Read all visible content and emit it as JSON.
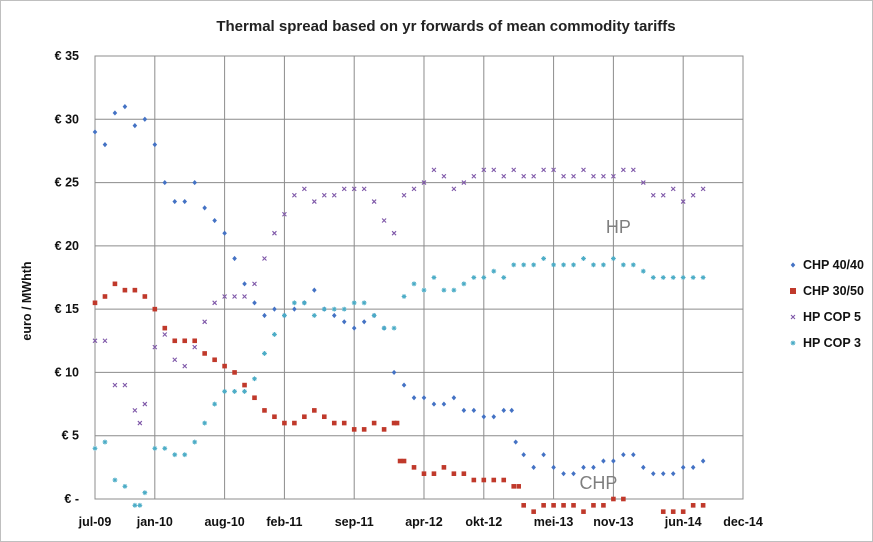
{
  "chart_data": {
    "type": "scatter",
    "title": "Thermal spread based on yr forwards of mean commodity tariffs",
    "ylabel": "euro / MWhth",
    "xlabel": "",
    "ylim": [
      0,
      35
    ],
    "xlim": [
      0,
      65
    ],
    "y_ticks": [
      {
        "value": 0,
        "label": "€ -"
      },
      {
        "value": 5,
        "label": "€ 5"
      },
      {
        "value": 10,
        "label": "€ 10"
      },
      {
        "value": 15,
        "label": "€ 15"
      },
      {
        "value": 20,
        "label": "€ 20"
      },
      {
        "value": 25,
        "label": "€ 25"
      },
      {
        "value": 30,
        "label": "€ 30"
      },
      {
        "value": 35,
        "label": "€ 35"
      }
    ],
    "x_ticks": [
      {
        "value": 0,
        "label": "jul-09"
      },
      {
        "value": 6,
        "label": "jan-10"
      },
      {
        "value": 13,
        "label": "aug-10"
      },
      {
        "value": 19,
        "label": "feb-11"
      },
      {
        "value": 26,
        "label": "sep-11"
      },
      {
        "value": 33,
        "label": "apr-12"
      },
      {
        "value": 39,
        "label": "okt-12"
      },
      {
        "value": 46,
        "label": "mei-13"
      },
      {
        "value": 52,
        "label": "nov-13"
      },
      {
        "value": 59,
        "label": "jun-14"
      },
      {
        "value": 65,
        "label": "dec-14"
      }
    ],
    "grid": true,
    "legend_position": "right",
    "annotations": [
      {
        "text": "HP",
        "x": 52.5,
        "y": 21
      },
      {
        "text": "CHP",
        "x": 50.5,
        "y": 0.8
      }
    ],
    "series": [
      {
        "name": "CHP 40/40",
        "color": "#4472c4",
        "marker": "diamond",
        "points": [
          [
            0,
            29
          ],
          [
            1,
            28
          ],
          [
            2,
            30.5
          ],
          [
            3,
            31
          ],
          [
            4,
            29.5
          ],
          [
            5,
            30
          ],
          [
            6,
            28
          ],
          [
            7,
            25
          ],
          [
            8,
            23.5
          ],
          [
            9,
            23.5
          ],
          [
            10,
            25
          ],
          [
            11,
            23
          ],
          [
            12,
            22
          ],
          [
            13,
            21
          ],
          [
            14,
            19
          ],
          [
            15,
            17
          ],
          [
            16,
            15.5
          ],
          [
            17,
            14.5
          ],
          [
            18,
            15
          ],
          [
            19,
            14.5
          ],
          [
            20,
            15
          ],
          [
            21,
            15.5
          ],
          [
            22,
            16.5
          ],
          [
            23,
            15
          ],
          [
            24,
            14.5
          ],
          [
            25,
            14
          ],
          [
            26,
            13.5
          ],
          [
            27,
            14
          ],
          [
            28,
            14.5
          ],
          [
            29,
            13.5
          ],
          [
            30,
            10
          ],
          [
            31,
            9
          ],
          [
            32,
            8
          ],
          [
            33,
            8
          ],
          [
            34,
            7.5
          ],
          [
            35,
            7.5
          ],
          [
            36,
            8
          ],
          [
            37,
            7
          ],
          [
            38,
            7
          ],
          [
            39,
            6.5
          ],
          [
            40,
            6.5
          ],
          [
            41,
            7
          ],
          [
            41.8,
            7
          ],
          [
            42.2,
            4.5
          ],
          [
            43,
            3.5
          ],
          [
            44,
            2.5
          ],
          [
            45,
            3.5
          ],
          [
            46,
            2.5
          ],
          [
            47,
            2
          ],
          [
            48,
            2
          ],
          [
            49,
            2.5
          ],
          [
            50,
            2.5
          ],
          [
            51,
            3
          ],
          [
            52,
            3
          ],
          [
            53,
            3.5
          ],
          [
            54,
            3.5
          ],
          [
            55,
            2.5
          ],
          [
            56,
            2
          ],
          [
            57,
            2
          ],
          [
            58,
            2
          ],
          [
            59,
            2.5
          ],
          [
            60,
            2.5
          ],
          [
            61,
            3
          ]
        ]
      },
      {
        "name": "CHP 30/50",
        "color": "#c0392b",
        "marker": "square",
        "points": [
          [
            0,
            15.5
          ],
          [
            1,
            16
          ],
          [
            2,
            17
          ],
          [
            3,
            16.5
          ],
          [
            4,
            16.5
          ],
          [
            5,
            16
          ],
          [
            6,
            15
          ],
          [
            7,
            13.5
          ],
          [
            8,
            12.5
          ],
          [
            9,
            12.5
          ],
          [
            10,
            12.5
          ],
          [
            11,
            11.5
          ],
          [
            12,
            11
          ],
          [
            13,
            10.5
          ],
          [
            14,
            10
          ],
          [
            15,
            9
          ],
          [
            16,
            8
          ],
          [
            17,
            7
          ],
          [
            18,
            6.5
          ],
          [
            19,
            6
          ],
          [
            20,
            6
          ],
          [
            21,
            6.5
          ],
          [
            22,
            7
          ],
          [
            23,
            6.5
          ],
          [
            24,
            6
          ],
          [
            25,
            6
          ],
          [
            26,
            5.5
          ],
          [
            27,
            5.5
          ],
          [
            28,
            6
          ],
          [
            29,
            5.5
          ],
          [
            30,
            6
          ],
          [
            30.3,
            6
          ],
          [
            30.6,
            3
          ],
          [
            31,
            3
          ],
          [
            32,
            2.5
          ],
          [
            33,
            2
          ],
          [
            34,
            2
          ],
          [
            35,
            2.5
          ],
          [
            36,
            2
          ],
          [
            37,
            2
          ],
          [
            38,
            1.5
          ],
          [
            39,
            1.5
          ],
          [
            40,
            1.5
          ],
          [
            41,
            1.5
          ],
          [
            42,
            1
          ],
          [
            42.5,
            1
          ],
          [
            43,
            -0.5
          ],
          [
            44,
            -1
          ],
          [
            45,
            -0.5
          ],
          [
            46,
            -0.5
          ],
          [
            47,
            -0.5
          ],
          [
            48,
            -0.5
          ],
          [
            49,
            -1
          ],
          [
            50,
            -0.5
          ],
          [
            51,
            -0.5
          ],
          [
            52,
            0
          ],
          [
            53,
            0
          ],
          [
            54,
            -1.5
          ],
          [
            55,
            -1.5
          ],
          [
            56,
            -1.5
          ],
          [
            57,
            -1
          ],
          [
            58,
            -1
          ],
          [
            59,
            -1
          ],
          [
            60,
            -0.5
          ],
          [
            61,
            -0.5
          ]
        ]
      },
      {
        "name": "HP COP 5",
        "color": "#7e57a8",
        "marker": "x",
        "points": [
          [
            0,
            12.5
          ],
          [
            1,
            12.5
          ],
          [
            2,
            9
          ],
          [
            3,
            9
          ],
          [
            4,
            7
          ],
          [
            4.5,
            6
          ],
          [
            5,
            7.5
          ],
          [
            6,
            12
          ],
          [
            7,
            13
          ],
          [
            8,
            11
          ],
          [
            9,
            10.5
          ],
          [
            10,
            12
          ],
          [
            11,
            14
          ],
          [
            12,
            15.5
          ],
          [
            13,
            16
          ],
          [
            14,
            16
          ],
          [
            15,
            16
          ],
          [
            16,
            17
          ],
          [
            17,
            19
          ],
          [
            18,
            21
          ],
          [
            19,
            22.5
          ],
          [
            20,
            24
          ],
          [
            21,
            24.5
          ],
          [
            22,
            23.5
          ],
          [
            23,
            24
          ],
          [
            24,
            24
          ],
          [
            25,
            24.5
          ],
          [
            26,
            24.5
          ],
          [
            27,
            24.5
          ],
          [
            28,
            23.5
          ],
          [
            29,
            22
          ],
          [
            30,
            21
          ],
          [
            31,
            24
          ],
          [
            32,
            24.5
          ],
          [
            33,
            25
          ],
          [
            34,
            26
          ],
          [
            35,
            25.5
          ],
          [
            36,
            24.5
          ],
          [
            37,
            25
          ],
          [
            38,
            25.5
          ],
          [
            39,
            26
          ],
          [
            40,
            26
          ],
          [
            41,
            25.5
          ],
          [
            42,
            26
          ],
          [
            43,
            25.5
          ],
          [
            44,
            25.5
          ],
          [
            45,
            26
          ],
          [
            46,
            26
          ],
          [
            47,
            25.5
          ],
          [
            48,
            25.5
          ],
          [
            49,
            26
          ],
          [
            50,
            25.5
          ],
          [
            51,
            25.5
          ],
          [
            52,
            25.5
          ],
          [
            53,
            26
          ],
          [
            54,
            26
          ],
          [
            55,
            25
          ],
          [
            56,
            24
          ],
          [
            57,
            24
          ],
          [
            58,
            24.5
          ],
          [
            59,
            23.5
          ],
          [
            60,
            24
          ],
          [
            61,
            24.5
          ]
        ]
      },
      {
        "name": "HP COP 3",
        "color": "#4bacc6",
        "marker": "star",
        "points": [
          [
            0,
            4
          ],
          [
            1,
            4.5
          ],
          [
            2,
            1.5
          ],
          [
            3,
            1
          ],
          [
            4,
            -0.5
          ],
          [
            4.5,
            -0.5
          ],
          [
            5,
            0.5
          ],
          [
            6,
            4
          ],
          [
            7,
            4
          ],
          [
            8,
            3.5
          ],
          [
            9,
            3.5
          ],
          [
            10,
            4.5
          ],
          [
            11,
            6
          ],
          [
            12,
            7.5
          ],
          [
            13,
            8.5
          ],
          [
            14,
            8.5
          ],
          [
            15,
            8.5
          ],
          [
            16,
            9.5
          ],
          [
            17,
            11.5
          ],
          [
            18,
            13
          ],
          [
            19,
            14.5
          ],
          [
            20,
            15.5
          ],
          [
            21,
            15.5
          ],
          [
            22,
            14.5
          ],
          [
            23,
            15
          ],
          [
            24,
            15
          ],
          [
            25,
            15
          ],
          [
            26,
            15.5
          ],
          [
            27,
            15.5
          ],
          [
            28,
            14.5
          ],
          [
            29,
            13.5
          ],
          [
            30,
            13.5
          ],
          [
            31,
            16
          ],
          [
            32,
            17
          ],
          [
            33,
            16.5
          ],
          [
            34,
            17.5
          ],
          [
            35,
            16.5
          ],
          [
            36,
            16.5
          ],
          [
            37,
            17
          ],
          [
            38,
            17.5
          ],
          [
            39,
            17.5
          ],
          [
            40,
            18
          ],
          [
            41,
            17.5
          ],
          [
            42,
            18.5
          ],
          [
            43,
            18.5
          ],
          [
            44,
            18.5
          ],
          [
            45,
            19
          ],
          [
            46,
            18.5
          ],
          [
            47,
            18.5
          ],
          [
            48,
            18.5
          ],
          [
            49,
            19
          ],
          [
            50,
            18.5
          ],
          [
            51,
            18.5
          ],
          [
            52,
            19
          ],
          [
            53,
            18.5
          ],
          [
            54,
            18.5
          ],
          [
            55,
            18
          ],
          [
            56,
            17.5
          ],
          [
            57,
            17.5
          ],
          [
            58,
            17.5
          ],
          [
            59,
            17.5
          ],
          [
            60,
            17.5
          ],
          [
            61,
            17.5
          ]
        ]
      }
    ]
  }
}
